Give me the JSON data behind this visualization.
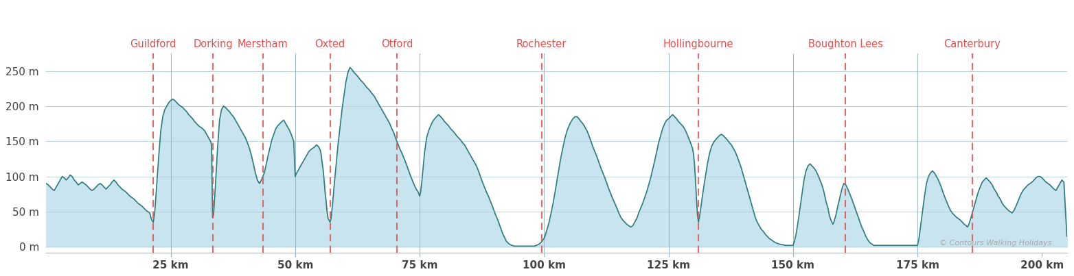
{
  "xlim": [
    0,
    205
  ],
  "ylim": [
    -8,
    275
  ],
  "yticks": [
    0,
    50,
    100,
    150,
    200,
    250
  ],
  "ytick_labels": [
    "0 m",
    "50 m",
    "100 m",
    "150 m",
    "200 m",
    "250 m"
  ],
  "xticks": [
    25,
    50,
    75,
    100,
    125,
    150,
    175,
    200
  ],
  "xtick_labels": [
    "25 km",
    "50 km",
    "75 km",
    "100 km",
    "125 km",
    "150 km",
    "175 km",
    "200 km"
  ],
  "line_color": "#2d7b7b",
  "fill_color": "#c8e4ee",
  "background_color": "#ffffff",
  "grid_color": "#b8d4e0",
  "label_color": "#e05050",
  "copyright_text": "© Contours Walking Holidays",
  "locations": [
    {
      "name": "Guildford",
      "x": 21.5
    },
    {
      "name": "Dorking",
      "x": 33.5
    },
    {
      "name": "Merstham",
      "x": 43.5
    },
    {
      "name": "Oxted",
      "x": 57.0
    },
    {
      "name": "Otford",
      "x": 70.5
    },
    {
      "name": "Rochester",
      "x": 99.5
    },
    {
      "name": "Hollingbourne",
      "x": 131.0
    },
    {
      "name": "Boughton Lees",
      "x": 160.5
    },
    {
      "name": "Canterbury",
      "x": 186.0
    }
  ],
  "solid_vlines": [
    25,
    50,
    75,
    100,
    125,
    150,
    175
  ],
  "elevation_data": [
    [
      0,
      90
    ],
    [
      0.4,
      88
    ],
    [
      0.8,
      85
    ],
    [
      1.2,
      82
    ],
    [
      1.6,
      80
    ],
    [
      2,
      85
    ],
    [
      2.4,
      90
    ],
    [
      2.8,
      95
    ],
    [
      3.2,
      100
    ],
    [
      3.6,
      98
    ],
    [
      4,
      95
    ],
    [
      4.4,
      98
    ],
    [
      4.8,
      102
    ],
    [
      5.2,
      100
    ],
    [
      5.6,
      95
    ],
    [
      6,
      92
    ],
    [
      6.4,
      88
    ],
    [
      6.8,
      90
    ],
    [
      7.2,
      92
    ],
    [
      7.6,
      90
    ],
    [
      8,
      88
    ],
    [
      8.4,
      85
    ],
    [
      8.8,
      82
    ],
    [
      9.2,
      80
    ],
    [
      9.6,
      82
    ],
    [
      10,
      85
    ],
    [
      10.4,
      88
    ],
    [
      10.8,
      90
    ],
    [
      11.2,
      88
    ],
    [
      11.6,
      85
    ],
    [
      12,
      82
    ],
    [
      12.4,
      85
    ],
    [
      12.8,
      88
    ],
    [
      13.2,
      92
    ],
    [
      13.6,
      95
    ],
    [
      14,
      92
    ],
    [
      14.4,
      88
    ],
    [
      14.8,
      85
    ],
    [
      15.2,
      82
    ],
    [
      15.6,
      80
    ],
    [
      16,
      78
    ],
    [
      16.4,
      75
    ],
    [
      16.8,
      72
    ],
    [
      17.2,
      70
    ],
    [
      17.6,
      68
    ],
    [
      18,
      65
    ],
    [
      18.4,
      62
    ],
    [
      18.8,
      60
    ],
    [
      19.2,
      58
    ],
    [
      19.6,
      55
    ],
    [
      20,
      52
    ],
    [
      20.4,
      50
    ],
    [
      20.8,
      48
    ],
    [
      21,
      42
    ],
    [
      21.2,
      38
    ],
    [
      21.5,
      35
    ],
    [
      21.8,
      50
    ],
    [
      22.2,
      90
    ],
    [
      22.6,
      130
    ],
    [
      23,
      165
    ],
    [
      23.4,
      185
    ],
    [
      23.8,
      195
    ],
    [
      24.2,
      200
    ],
    [
      24.6,
      205
    ],
    [
      25,
      208
    ],
    [
      25.4,
      210
    ],
    [
      25.8,
      208
    ],
    [
      26.2,
      205
    ],
    [
      26.6,
      202
    ],
    [
      27,
      200
    ],
    [
      27.4,
      198
    ],
    [
      27.8,
      195
    ],
    [
      28.2,
      192
    ],
    [
      28.6,
      188
    ],
    [
      29,
      185
    ],
    [
      29.4,
      182
    ],
    [
      29.8,
      178
    ],
    [
      30.2,
      175
    ],
    [
      30.6,
      172
    ],
    [
      31,
      170
    ],
    [
      31.4,
      168
    ],
    [
      31.8,
      165
    ],
    [
      32.2,
      160
    ],
    [
      32.6,
      155
    ],
    [
      33,
      150
    ],
    [
      33.2,
      145
    ],
    [
      33.4,
      42
    ],
    [
      33.6,
      45
    ],
    [
      34,
      90
    ],
    [
      34.4,
      140
    ],
    [
      34.8,
      180
    ],
    [
      35.2,
      195
    ],
    [
      35.6,
      200
    ],
    [
      36,
      198
    ],
    [
      36.4,
      195
    ],
    [
      36.8,
      192
    ],
    [
      37.2,
      188
    ],
    [
      37.6,
      185
    ],
    [
      38,
      180
    ],
    [
      38.4,
      175
    ],
    [
      38.8,
      170
    ],
    [
      39.2,
      165
    ],
    [
      39.6,
      160
    ],
    [
      40,
      155
    ],
    [
      40.4,
      148
    ],
    [
      40.8,
      140
    ],
    [
      41.2,
      130
    ],
    [
      41.6,
      118
    ],
    [
      42,
      105
    ],
    [
      42.4,
      95
    ],
    [
      42.8,
      90
    ],
    [
      43,
      92
    ],
    [
      43.2,
      95
    ],
    [
      43.5,
      100
    ],
    [
      43.8,
      105
    ],
    [
      44.1,
      115
    ],
    [
      44.5,
      128
    ],
    [
      44.9,
      140
    ],
    [
      45.3,
      152
    ],
    [
      45.7,
      160
    ],
    [
      46.1,
      168
    ],
    [
      46.5,
      172
    ],
    [
      46.9,
      175
    ],
    [
      47.3,
      178
    ],
    [
      47.7,
      180
    ],
    [
      48.1,
      175
    ],
    [
      48.5,
      170
    ],
    [
      48.9,
      165
    ],
    [
      49.3,
      158
    ],
    [
      49.7,
      150
    ],
    [
      50,
      100
    ],
    [
      50.3,
      105
    ],
    [
      50.7,
      110
    ],
    [
      51.1,
      115
    ],
    [
      51.5,
      120
    ],
    [
      51.9,
      125
    ],
    [
      52.3,
      130
    ],
    [
      52.7,
      135
    ],
    [
      53.1,
      138
    ],
    [
      53.5,
      140
    ],
    [
      53.9,
      142
    ],
    [
      54.3,
      145
    ],
    [
      54.7,
      142
    ],
    [
      55,
      138
    ],
    [
      55.2,
      132
    ],
    [
      55.4,
      120
    ],
    [
      55.6,
      110
    ],
    [
      55.8,
      95
    ],
    [
      56,
      78
    ],
    [
      56.2,
      65
    ],
    [
      56.4,
      50
    ],
    [
      56.6,
      40
    ],
    [
      56.8,
      38
    ],
    [
      57,
      35
    ],
    [
      57.2,
      40
    ],
    [
      57.5,
      60
    ],
    [
      57.8,
      85
    ],
    [
      58.2,
      115
    ],
    [
      58.6,
      145
    ],
    [
      59,
      170
    ],
    [
      59.4,
      195
    ],
    [
      59.8,
      215
    ],
    [
      60.2,
      235
    ],
    [
      60.6,
      248
    ],
    [
      61,
      255
    ],
    [
      61.4,
      252
    ],
    [
      61.8,
      248
    ],
    [
      62.2,
      245
    ],
    [
      62.6,
      242
    ],
    [
      63,
      238
    ],
    [
      63.4,
      235
    ],
    [
      63.8,
      232
    ],
    [
      64.2,
      228
    ],
    [
      64.6,
      225
    ],
    [
      65,
      222
    ],
    [
      65.4,
      218
    ],
    [
      65.8,
      215
    ],
    [
      66.2,
      210
    ],
    [
      66.6,
      205
    ],
    [
      67,
      200
    ],
    [
      67.4,
      195
    ],
    [
      67.8,
      190
    ],
    [
      68.2,
      185
    ],
    [
      68.6,
      180
    ],
    [
      69,
      175
    ],
    [
      69.4,
      168
    ],
    [
      69.8,
      162
    ],
    [
      70,
      158
    ],
    [
      70.3,
      152
    ],
    [
      70.7,
      145
    ],
    [
      71.1,
      138
    ],
    [
      71.5,
      132
    ],
    [
      71.9,
      125
    ],
    [
      72.3,
      118
    ],
    [
      72.7,
      110
    ],
    [
      73.1,
      102
    ],
    [
      73.5,
      95
    ],
    [
      73.9,
      88
    ],
    [
      74.3,
      82
    ],
    [
      74.7,
      78
    ],
    [
      75,
      72
    ],
    [
      75.2,
      78
    ],
    [
      75.4,
      90
    ],
    [
      75.6,
      105
    ],
    [
      75.8,
      120
    ],
    [
      76.0,
      135
    ],
    [
      76.2,
      145
    ],
    [
      76.4,
      155
    ],
    [
      76.8,
      165
    ],
    [
      77.2,
      172
    ],
    [
      77.6,
      178
    ],
    [
      78,
      182
    ],
    [
      78.4,
      185
    ],
    [
      78.8,
      188
    ],
    [
      79.2,
      185
    ],
    [
      79.6,
      182
    ],
    [
      80,
      178
    ],
    [
      80.4,
      175
    ],
    [
      80.8,
      172
    ],
    [
      81.2,
      168
    ],
    [
      81.6,
      165
    ],
    [
      82,
      162
    ],
    [
      82.4,
      158
    ],
    [
      82.8,
      155
    ],
    [
      83.2,
      152
    ],
    [
      83.6,
      148
    ],
    [
      84,
      145
    ],
    [
      84.4,
      140
    ],
    [
      84.8,
      135
    ],
    [
      85.2,
      130
    ],
    [
      85.6,
      125
    ],
    [
      86,
      120
    ],
    [
      86.4,
      115
    ],
    [
      86.8,
      108
    ],
    [
      87.2,
      100
    ],
    [
      87.6,
      92
    ],
    [
      88,
      85
    ],
    [
      88.4,
      78
    ],
    [
      88.8,
      72
    ],
    [
      89.2,
      65
    ],
    [
      89.6,
      58
    ],
    [
      90,
      50
    ],
    [
      90.4,
      43
    ],
    [
      90.8,
      36
    ],
    [
      91.2,
      28
    ],
    [
      91.6,
      20
    ],
    [
      92,
      14
    ],
    [
      92.4,
      8
    ],
    [
      92.8,
      5
    ],
    [
      93.2,
      3
    ],
    [
      93.6,
      2
    ],
    [
      94,
      1
    ],
    [
      94.4,
      1
    ],
    [
      94.8,
      1
    ],
    [
      95.2,
      1
    ],
    [
      95.6,
      1
    ],
    [
      96,
      1
    ],
    [
      96.4,
      1
    ],
    [
      96.8,
      1
    ],
    [
      97.2,
      1
    ],
    [
      97.6,
      1
    ],
    [
      98,
      1
    ],
    [
      98.4,
      2
    ],
    [
      98.8,
      3
    ],
    [
      99.2,
      5
    ],
    [
      99.6,
      8
    ],
    [
      100,
      12
    ],
    [
      100.3,
      18
    ],
    [
      100.6,
      25
    ],
    [
      101,
      35
    ],
    [
      101.4,
      48
    ],
    [
      101.8,
      62
    ],
    [
      102.2,
      78
    ],
    [
      102.6,
      95
    ],
    [
      103,
      112
    ],
    [
      103.4,
      128
    ],
    [
      103.8,
      142
    ],
    [
      104.2,
      155
    ],
    [
      104.6,
      165
    ],
    [
      105,
      172
    ],
    [
      105.4,
      178
    ],
    [
      105.8,
      182
    ],
    [
      106.2,
      185
    ],
    [
      106.6,
      185
    ],
    [
      107,
      182
    ],
    [
      107.4,
      178
    ],
    [
      107.8,
      175
    ],
    [
      108.2,
      170
    ],
    [
      108.6,
      165
    ],
    [
      109,
      158
    ],
    [
      109.4,
      150
    ],
    [
      109.8,
      142
    ],
    [
      110.2,
      135
    ],
    [
      110.6,
      128
    ],
    [
      111,
      120
    ],
    [
      111.4,
      112
    ],
    [
      111.8,
      105
    ],
    [
      112.2,
      98
    ],
    [
      112.6,
      90
    ],
    [
      113,
      82
    ],
    [
      113.4,
      75
    ],
    [
      113.8,
      68
    ],
    [
      114.2,
      62
    ],
    [
      114.6,
      55
    ],
    [
      115,
      48
    ],
    [
      115.4,
      42
    ],
    [
      115.8,
      38
    ],
    [
      116.2,
      35
    ],
    [
      116.6,
      32
    ],
    [
      117,
      30
    ],
    [
      117.4,
      28
    ],
    [
      117.8,
      30
    ],
    [
      118.2,
      35
    ],
    [
      118.6,
      40
    ],
    [
      119,
      48
    ],
    [
      119.4,
      55
    ],
    [
      119.8,
      62
    ],
    [
      120.2,
      70
    ],
    [
      120.6,
      78
    ],
    [
      121,
      88
    ],
    [
      121.4,
      98
    ],
    [
      121.8,
      110
    ],
    [
      122.2,
      122
    ],
    [
      122.6,
      135
    ],
    [
      123,
      148
    ],
    [
      123.4,
      158
    ],
    [
      123.8,
      168
    ],
    [
      124.2,
      175
    ],
    [
      124.6,
      180
    ],
    [
      125,
      182
    ],
    [
      125.4,
      185
    ],
    [
      125.8,
      188
    ],
    [
      126.2,
      185
    ],
    [
      126.6,
      182
    ],
    [
      127,
      178
    ],
    [
      127.4,
      175
    ],
    [
      127.8,
      172
    ],
    [
      128.2,
      168
    ],
    [
      128.6,
      162
    ],
    [
      129,
      155
    ],
    [
      129.4,
      148
    ],
    [
      129.8,
      140
    ],
    [
      130,
      132
    ],
    [
      130.2,
      118
    ],
    [
      130.4,
      95
    ],
    [
      130.6,
      68
    ],
    [
      130.8,
      45
    ],
    [
      131,
      35
    ],
    [
      131.2,
      42
    ],
    [
      131.6,
      62
    ],
    [
      132,
      82
    ],
    [
      132.4,
      100
    ],
    [
      132.8,
      118
    ],
    [
      133.2,
      132
    ],
    [
      133.6,
      142
    ],
    [
      134,
      148
    ],
    [
      134.4,
      152
    ],
    [
      134.8,
      155
    ],
    [
      135.2,
      158
    ],
    [
      135.6,
      160
    ],
    [
      136,
      158
    ],
    [
      136.4,
      155
    ],
    [
      136.8,
      152
    ],
    [
      137.2,
      148
    ],
    [
      137.6,
      145
    ],
    [
      138,
      140
    ],
    [
      138.4,
      135
    ],
    [
      138.8,
      128
    ],
    [
      139.2,
      120
    ],
    [
      139.6,
      112
    ],
    [
      140,
      102
    ],
    [
      140.4,
      92
    ],
    [
      140.8,
      82
    ],
    [
      141.2,
      72
    ],
    [
      141.6,
      62
    ],
    [
      142,
      52
    ],
    [
      142.4,
      42
    ],
    [
      142.8,
      35
    ],
    [
      143.2,
      30
    ],
    [
      143.6,
      25
    ],
    [
      144,
      22
    ],
    [
      144.4,
      18
    ],
    [
      144.8,
      15
    ],
    [
      145.2,
      12
    ],
    [
      145.6,
      10
    ],
    [
      146,
      8
    ],
    [
      146.4,
      6
    ],
    [
      146.8,
      5
    ],
    [
      147.2,
      4
    ],
    [
      147.6,
      3
    ],
    [
      148,
      3
    ],
    [
      148.4,
      2
    ],
    [
      148.8,
      2
    ],
    [
      149.2,
      2
    ],
    [
      149.6,
      2
    ],
    [
      150,
      2
    ],
    [
      150.3,
      8
    ],
    [
      150.6,
      18
    ],
    [
      151,
      35
    ],
    [
      151.4,
      55
    ],
    [
      151.8,
      75
    ],
    [
      152.2,
      95
    ],
    [
      152.6,
      108
    ],
    [
      153,
      115
    ],
    [
      153.4,
      118
    ],
    [
      153.8,
      115
    ],
    [
      154.2,
      112
    ],
    [
      154.6,
      108
    ],
    [
      155,
      102
    ],
    [
      155.4,
      95
    ],
    [
      155.8,
      88
    ],
    [
      156.2,
      78
    ],
    [
      156.6,
      65
    ],
    [
      157,
      55
    ],
    [
      157.2,
      48
    ],
    [
      157.4,
      42
    ],
    [
      157.6,
      38
    ],
    [
      157.8,
      35
    ],
    [
      158,
      32
    ],
    [
      158.2,
      35
    ],
    [
      158.6,
      45
    ],
    [
      159,
      58
    ],
    [
      159.4,
      70
    ],
    [
      159.8,
      82
    ],
    [
      160.2,
      90
    ],
    [
      160.6,
      88
    ],
    [
      161,
      82
    ],
    [
      161.4,
      75
    ],
    [
      161.8,
      68
    ],
    [
      162.2,
      60
    ],
    [
      162.6,
      52
    ],
    [
      163,
      44
    ],
    [
      163.4,
      36
    ],
    [
      163.8,
      28
    ],
    [
      164.2,
      22
    ],
    [
      164.6,
      15
    ],
    [
      165,
      10
    ],
    [
      165.4,
      6
    ],
    [
      165.8,
      4
    ],
    [
      166.2,
      2
    ],
    [
      166.6,
      2
    ],
    [
      167,
      2
    ],
    [
      167.4,
      2
    ],
    [
      167.8,
      2
    ],
    [
      168.2,
      2
    ],
    [
      168.6,
      2
    ],
    [
      169,
      2
    ],
    [
      169.4,
      2
    ],
    [
      169.8,
      2
    ],
    [
      170.2,
      2
    ],
    [
      170.6,
      2
    ],
    [
      171,
      2
    ],
    [
      171.4,
      2
    ],
    [
      171.8,
      2
    ],
    [
      172.2,
      2
    ],
    [
      172.6,
      2
    ],
    [
      173,
      2
    ],
    [
      173.4,
      2
    ],
    [
      173.8,
      2
    ],
    [
      174.2,
      2
    ],
    [
      174.6,
      2
    ],
    [
      175,
      2
    ],
    [
      175.3,
      12
    ],
    [
      175.6,
      28
    ],
    [
      176,
      50
    ],
    [
      176.4,
      72
    ],
    [
      176.8,
      90
    ],
    [
      177.2,
      100
    ],
    [
      177.6,
      105
    ],
    [
      178,
      108
    ],
    [
      178.4,
      105
    ],
    [
      178.8,
      100
    ],
    [
      179.2,
      95
    ],
    [
      179.6,
      88
    ],
    [
      180,
      80
    ],
    [
      180.4,
      72
    ],
    [
      180.8,
      65
    ],
    [
      181.2,
      58
    ],
    [
      181.6,
      52
    ],
    [
      182,
      48
    ],
    [
      182.4,
      45
    ],
    [
      182.8,
      42
    ],
    [
      183.2,
      40
    ],
    [
      183.6,
      38
    ],
    [
      184,
      35
    ],
    [
      184.4,
      32
    ],
    [
      184.8,
      30
    ],
    [
      185,
      28
    ],
    [
      185.2,
      30
    ],
    [
      185.6,
      38
    ],
    [
      186,
      48
    ],
    [
      186.4,
      58
    ],
    [
      186.8,
      68
    ],
    [
      187.2,
      78
    ],
    [
      187.6,
      85
    ],
    [
      188,
      92
    ],
    [
      188.4,
      95
    ],
    [
      188.8,
      98
    ],
    [
      189.2,
      95
    ],
    [
      189.6,
      92
    ],
    [
      190,
      88
    ],
    [
      190.4,
      82
    ],
    [
      190.8,
      78
    ],
    [
      191.2,
      72
    ],
    [
      191.6,
      68
    ],
    [
      192,
      62
    ],
    [
      192.4,
      58
    ],
    [
      192.8,
      55
    ],
    [
      193.2,
      52
    ],
    [
      193.6,
      50
    ],
    [
      194,
      48
    ],
    [
      194.4,
      52
    ],
    [
      194.8,
      58
    ],
    [
      195.2,
      65
    ],
    [
      195.6,
      72
    ],
    [
      196,
      78
    ],
    [
      196.4,
      82
    ],
    [
      196.8,
      85
    ],
    [
      197.2,
      88
    ],
    [
      197.6,
      90
    ],
    [
      198,
      92
    ],
    [
      198.4,
      95
    ],
    [
      198.8,
      98
    ],
    [
      199.2,
      100
    ],
    [
      199.6,
      100
    ],
    [
      200,
      98
    ],
    [
      200.4,
      95
    ],
    [
      200.8,
      92
    ],
    [
      201.2,
      90
    ],
    [
      201.6,
      88
    ],
    [
      202,
      85
    ],
    [
      202.4,
      82
    ],
    [
      202.8,
      80
    ],
    [
      203.2,
      85
    ],
    [
      203.6,
      90
    ],
    [
      204,
      95
    ],
    [
      204.4,
      92
    ],
    [
      205,
      15
    ]
  ]
}
